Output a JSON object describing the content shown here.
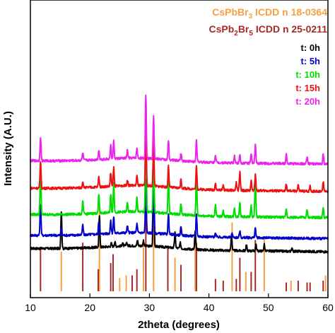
{
  "chart_data": {
    "type": "line",
    "xlabel": "2theta (degrees)",
    "ylabel": "Intensity (A.U.)",
    "xlim": [
      10,
      60
    ],
    "xticks": [
      10,
      20,
      30,
      40,
      50,
      60
    ],
    "y_tick_labels": false,
    "grid": false,
    "legend_position": "top-right",
    "references": [
      {
        "compound_main": "CsPbBr",
        "compound_sub": "3",
        "compound_rest": "",
        "suffix": " ICDD n 18-0364",
        "color": "#F7A043",
        "sticks": [
          {
            "x": 15.2,
            "h": 0.45
          },
          {
            "x": 21.6,
            "h": 0.95
          },
          {
            "x": 25.0,
            "h": 0.15
          },
          {
            "x": 26.1,
            "h": 0.18
          },
          {
            "x": 29.0,
            "h": 0.55
          },
          {
            "x": 30.7,
            "h": 1.0
          },
          {
            "x": 34.3,
            "h": 0.38
          },
          {
            "x": 37.7,
            "h": 0.6
          },
          {
            "x": 43.9,
            "h": 0.78
          },
          {
            "x": 46.2,
            "h": 0.22
          },
          {
            "x": 49.3,
            "h": 0.62
          },
          {
            "x": 53.8,
            "h": 0.12
          },
          {
            "x": 59.6,
            "h": 0.18
          }
        ]
      },
      {
        "compound_main": "CsPb",
        "compound_sub": "2",
        "compound_rest": "Br",
        "compound_sub2": "5",
        "suffix": " ICDD n 25-0211",
        "color": "#A52A2A",
        "sticks": [
          {
            "x": 11.7,
            "h": 0.5
          },
          {
            "x": 18.8,
            "h": 0.55
          },
          {
            "x": 21.4,
            "h": 0.25
          },
          {
            "x": 23.5,
            "h": 0.32
          },
          {
            "x": 23.9,
            "h": 0.42
          },
          {
            "x": 27.1,
            "h": 0.18
          },
          {
            "x": 27.9,
            "h": 0.25
          },
          {
            "x": 29.4,
            "h": 1.0
          },
          {
            "x": 33.1,
            "h": 0.48
          },
          {
            "x": 35.3,
            "h": 0.3
          },
          {
            "x": 37.9,
            "h": 0.55
          },
          {
            "x": 41.1,
            "h": 0.14
          },
          {
            "x": 42.4,
            "h": 0.12
          },
          {
            "x": 44.6,
            "h": 0.14
          },
          {
            "x": 45.2,
            "h": 0.38
          },
          {
            "x": 47.1,
            "h": 0.22
          },
          {
            "x": 47.8,
            "h": 0.58
          },
          {
            "x": 53.0,
            "h": 0.1
          },
          {
            "x": 55.0,
            "h": 0.12
          },
          {
            "x": 56.5,
            "h": 0.1
          },
          {
            "x": 57.0,
            "h": 0.1
          },
          {
            "x": 59.2,
            "h": 0.12
          }
        ]
      }
    ],
    "series": [
      {
        "name": "t: 0h",
        "color": "#000000",
        "baseline": 0,
        "peaks": [
          {
            "x": 15.2,
            "h": 34
          },
          {
            "x": 21.6,
            "h": 29
          },
          {
            "x": 23.6,
            "h": 3
          },
          {
            "x": 24.2,
            "h": 4
          },
          {
            "x": 25.5,
            "h": 3
          },
          {
            "x": 26.2,
            "h": 3
          },
          {
            "x": 28.0,
            "h": 5
          },
          {
            "x": 29.0,
            "h": 5
          },
          {
            "x": 30.7,
            "h": 72
          },
          {
            "x": 34.3,
            "h": 14
          },
          {
            "x": 35.2,
            "h": 5
          },
          {
            "x": 37.7,
            "h": 17
          },
          {
            "x": 43.8,
            "h": 15
          },
          {
            "x": 46.3,
            "h": 5
          },
          {
            "x": 47.9,
            "h": 6
          },
          {
            "x": 49.3,
            "h": 6
          },
          {
            "x": 54.0,
            "h": 3
          }
        ]
      },
      {
        "name": "t: 5h",
        "color": "#0000CC",
        "baseline": 12,
        "peaks": [
          {
            "x": 11.7,
            "h": 29
          },
          {
            "x": 15.2,
            "h": 7
          },
          {
            "x": 18.8,
            "h": 9
          },
          {
            "x": 21.5,
            "h": 12
          },
          {
            "x": 23.5,
            "h": 11
          },
          {
            "x": 24.0,
            "h": 15
          },
          {
            "x": 26.3,
            "h": 6
          },
          {
            "x": 27.9,
            "h": 8
          },
          {
            "x": 29.4,
            "h": 48
          },
          {
            "x": 30.7,
            "h": 62
          },
          {
            "x": 33.2,
            "h": 18
          },
          {
            "x": 35.3,
            "h": 7
          },
          {
            "x": 37.9,
            "h": 21
          },
          {
            "x": 41.1,
            "h": 4
          },
          {
            "x": 43.9,
            "h": 4
          },
          {
            "x": 45.2,
            "h": 6
          },
          {
            "x": 47.8,
            "h": 9
          }
        ]
      },
      {
        "name": "t: 10h",
        "color": "#00DD00",
        "baseline": 31,
        "peaks": [
          {
            "x": 11.7,
            "h": 41
          },
          {
            "x": 18.8,
            "h": 11
          },
          {
            "x": 21.5,
            "h": 17
          },
          {
            "x": 23.5,
            "h": 16
          },
          {
            "x": 24.0,
            "h": 27
          },
          {
            "x": 26.3,
            "h": 8
          },
          {
            "x": 27.9,
            "h": 13
          },
          {
            "x": 29.4,
            "h": 92
          },
          {
            "x": 30.7,
            "h": 62
          },
          {
            "x": 33.2,
            "h": 38
          },
          {
            "x": 35.3,
            "h": 10
          },
          {
            "x": 37.9,
            "h": 39
          },
          {
            "x": 41.1,
            "h": 10
          },
          {
            "x": 42.4,
            "h": 6
          },
          {
            "x": 44.3,
            "h": 8
          },
          {
            "x": 45.2,
            "h": 14
          },
          {
            "x": 47.1,
            "h": 10
          },
          {
            "x": 47.8,
            "h": 35
          },
          {
            "x": 53.0,
            "h": 7
          },
          {
            "x": 56.5,
            "h": 7
          },
          {
            "x": 59.2,
            "h": 9
          }
        ]
      },
      {
        "name": "t: 15h",
        "color": "#EE1111",
        "baseline": 55,
        "peaks": [
          {
            "x": 11.7,
            "h": 25
          },
          {
            "x": 18.8,
            "h": 6
          },
          {
            "x": 21.5,
            "h": 9
          },
          {
            "x": 23.5,
            "h": 12
          },
          {
            "x": 24.0,
            "h": 17
          },
          {
            "x": 26.3,
            "h": 5
          },
          {
            "x": 27.9,
            "h": 9
          },
          {
            "x": 29.4,
            "h": 60
          },
          {
            "x": 30.7,
            "h": 40
          },
          {
            "x": 33.2,
            "h": 19
          },
          {
            "x": 35.3,
            "h": 8
          },
          {
            "x": 37.9,
            "h": 21
          },
          {
            "x": 41.1,
            "h": 6
          },
          {
            "x": 42.4,
            "h": 5
          },
          {
            "x": 44.6,
            "h": 7
          },
          {
            "x": 45.2,
            "h": 17
          },
          {
            "x": 47.1,
            "h": 9
          },
          {
            "x": 47.8,
            "h": 15
          },
          {
            "x": 53.0,
            "h": 6
          },
          {
            "x": 55.0,
            "h": 6
          },
          {
            "x": 57.0,
            "h": 5
          },
          {
            "x": 59.2,
            "h": 9
          }
        ]
      },
      {
        "name": "t: 20h",
        "color": "#EE22EE",
        "baseline": 80,
        "peaks": [
          {
            "x": 11.7,
            "h": 22
          },
          {
            "x": 18.8,
            "h": 7
          },
          {
            "x": 21.5,
            "h": 9
          },
          {
            "x": 23.5,
            "h": 12
          },
          {
            "x": 24.0,
            "h": 16
          },
          {
            "x": 26.3,
            "h": 7
          },
          {
            "x": 27.9,
            "h": 9
          },
          {
            "x": 29.4,
            "h": 58
          },
          {
            "x": 30.7,
            "h": 40
          },
          {
            "x": 33.2,
            "h": 17
          },
          {
            "x": 35.3,
            "h": 7
          },
          {
            "x": 37.9,
            "h": 19
          },
          {
            "x": 41.1,
            "h": 7
          },
          {
            "x": 44.3,
            "h": 6
          },
          {
            "x": 45.2,
            "h": 8
          },
          {
            "x": 47.1,
            "h": 8
          },
          {
            "x": 47.8,
            "h": 17
          },
          {
            "x": 53.0,
            "h": 9
          },
          {
            "x": 56.5,
            "h": 6
          },
          {
            "x": 59.2,
            "h": 9
          }
        ]
      }
    ]
  }
}
